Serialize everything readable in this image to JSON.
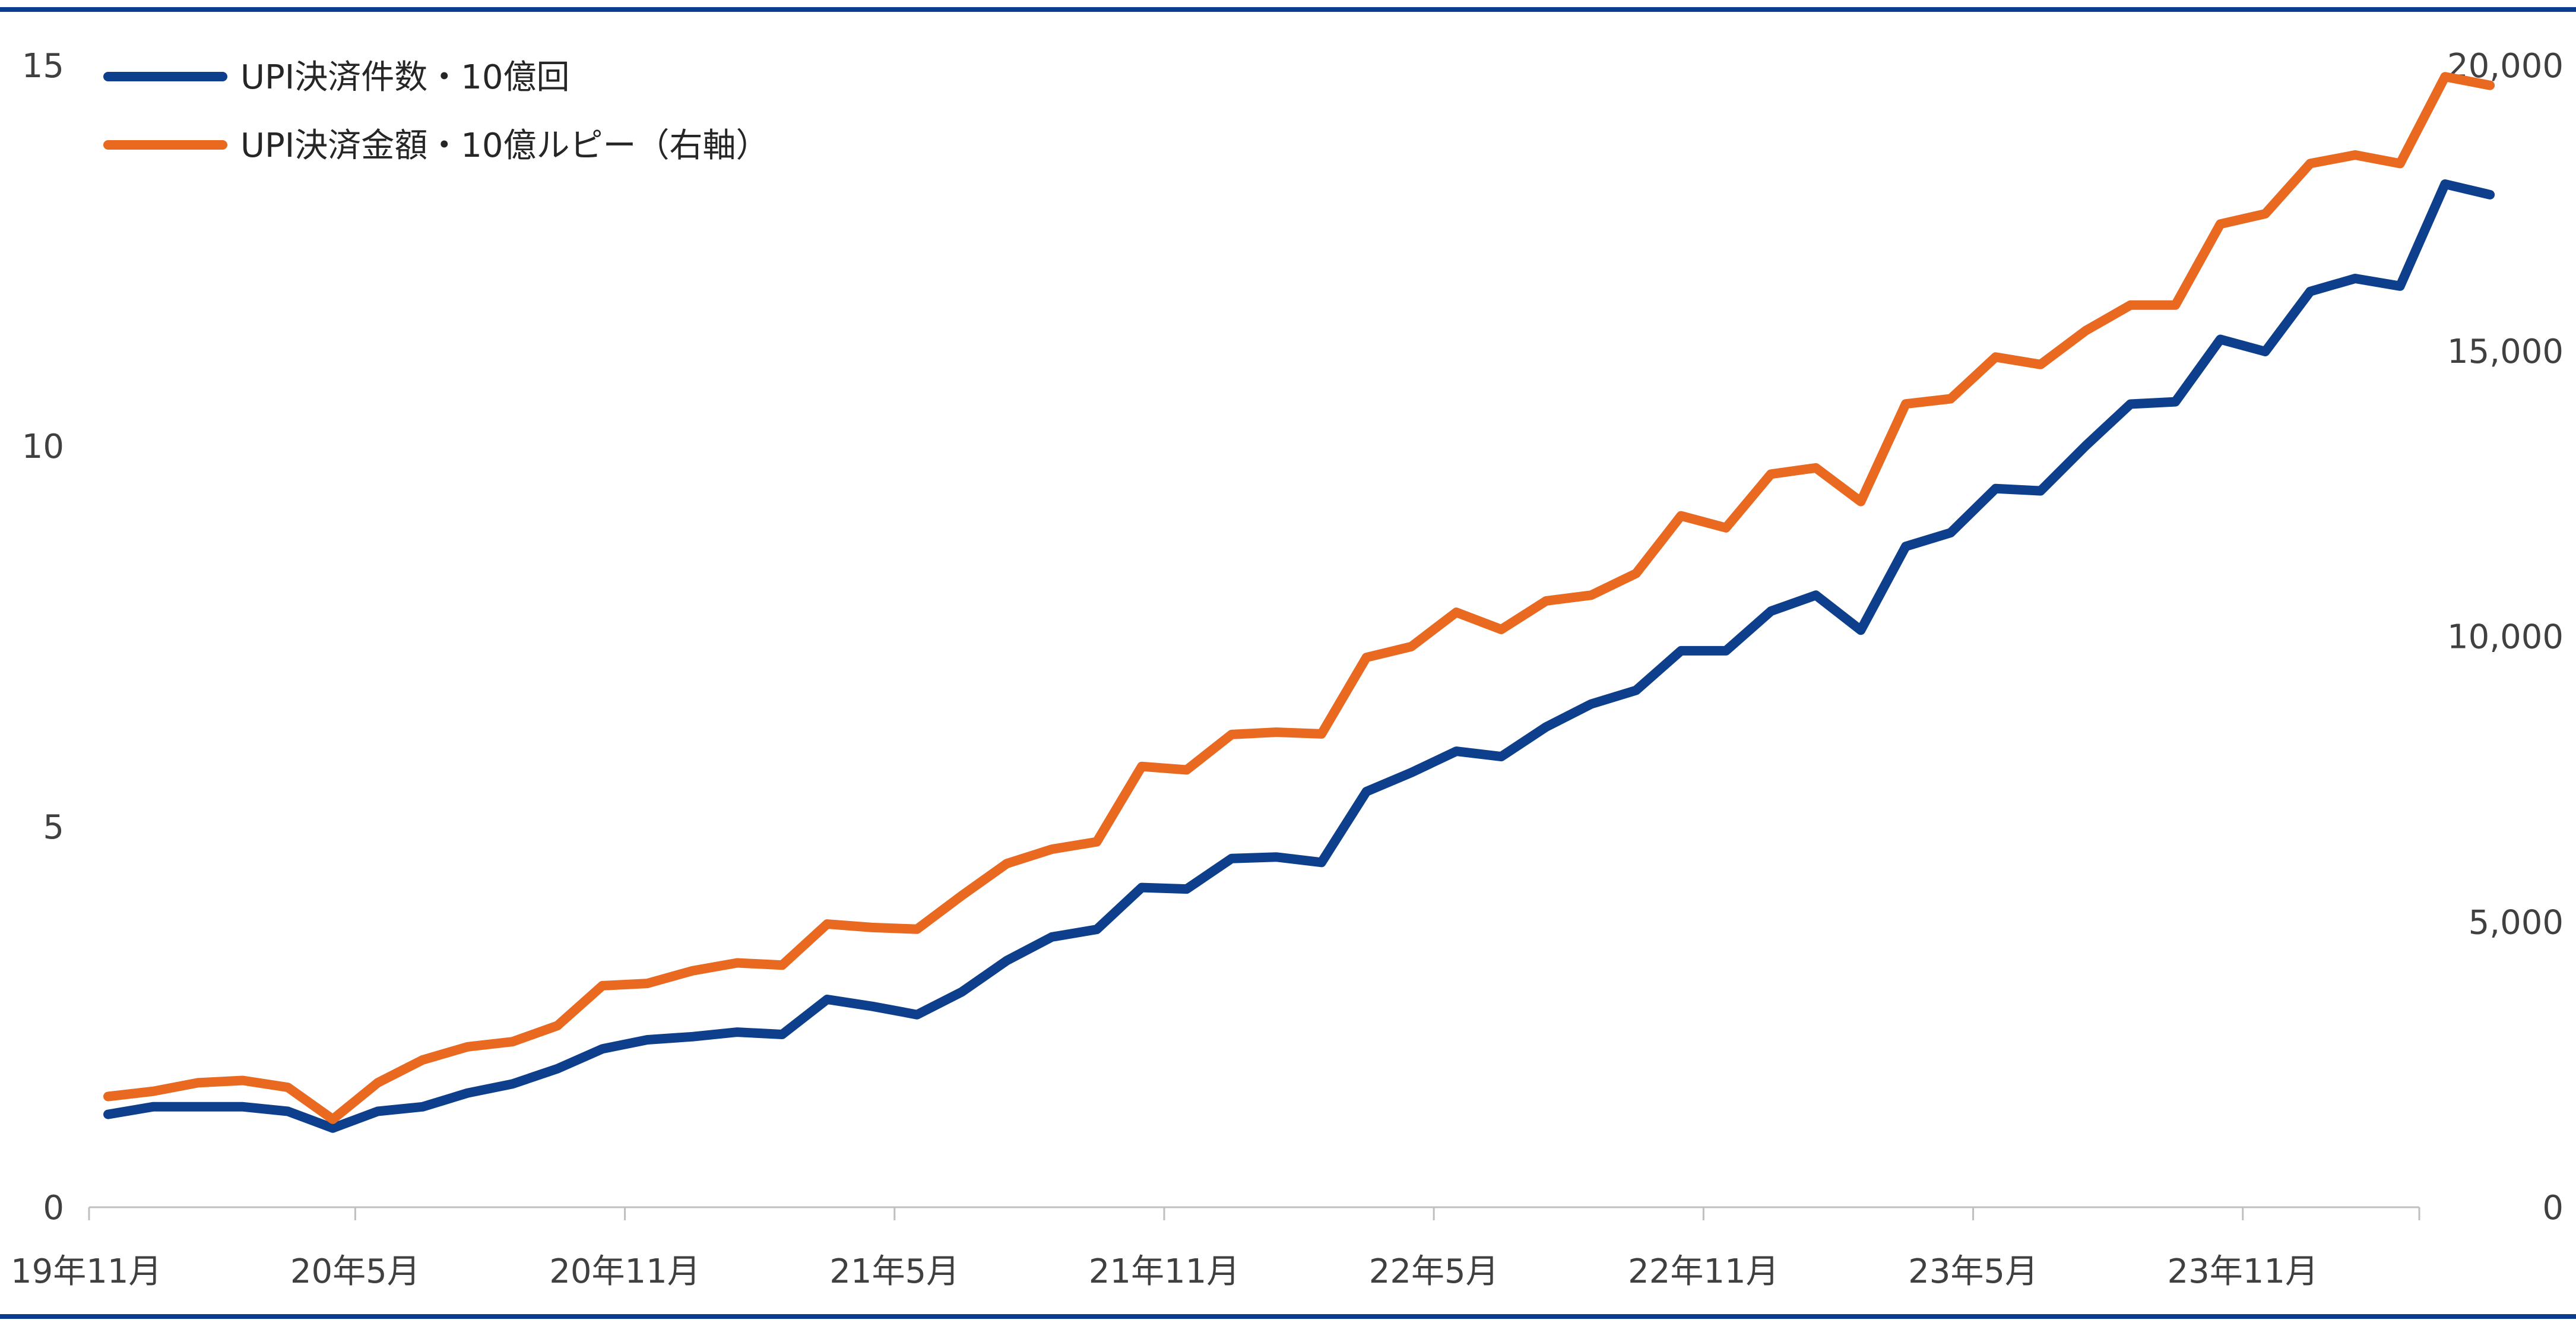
{
  "chart_data": {
    "type": "line",
    "colors": {
      "frame": "#0b3b8c",
      "axis": "#bfbfbf"
    },
    "x_labels": [
      "19年11月",
      "20年5月",
      "20年11月",
      "21年5月",
      "21年11月",
      "22年5月",
      "22年11月",
      "23年5月",
      "23年11月"
    ],
    "yaxis_left": {
      "ticks": [
        "0",
        "5",
        "10",
        "15"
      ],
      "ylim": [
        0,
        15
      ]
    },
    "yaxis_right": {
      "ticks": [
        "0",
        "5,000",
        "10,000",
        "15,000",
        "20,000"
      ],
      "ylim": [
        0,
        20000
      ]
    },
    "series": [
      {
        "name": "UPI決済件数・10億回",
        "axis": "left",
        "color": "#0d3f8c",
        "values": [
          1.22,
          1.32,
          1.32,
          1.32,
          1.26,
          1.04,
          1.26,
          1.32,
          1.5,
          1.62,
          1.82,
          2.08,
          2.2,
          2.24,
          2.3,
          2.27,
          2.73,
          2.64,
          2.53,
          2.83,
          3.24,
          3.55,
          3.65,
          4.2,
          4.18,
          4.58,
          4.6,
          4.53,
          5.46,
          5.71,
          5.99,
          5.92,
          6.31,
          6.61,
          6.79,
          7.31,
          7.31,
          7.83,
          8.04,
          7.58,
          8.68,
          8.86,
          9.44,
          9.41,
          10.0,
          10.55,
          10.58,
          11.4,
          11.24,
          12.03,
          12.2,
          12.1,
          13.44,
          13.3
        ]
      },
      {
        "name": "UPI決済金額・10億ルピー（右軸）",
        "axis": "right",
        "color": "#e8691f",
        "values": [
          1940,
          2030,
          2180,
          2220,
          2100,
          1540,
          2180,
          2580,
          2810,
          2900,
          3180,
          3880,
          3920,
          4140,
          4280,
          4240,
          4960,
          4900,
          4870,
          5460,
          6020,
          6270,
          6400,
          7720,
          7660,
          8280,
          8320,
          8290,
          9630,
          9820,
          10420,
          10120,
          10620,
          10720,
          11100,
          12110,
          11900,
          12840,
          12950,
          12360,
          14070,
          14160,
          14890,
          14760,
          15350,
          15800,
          15800,
          17220,
          17400,
          18280,
          18430,
          18280,
          19800,
          19650
        ]
      }
    ],
    "grid": false,
    "legend_position": "top-left"
  }
}
